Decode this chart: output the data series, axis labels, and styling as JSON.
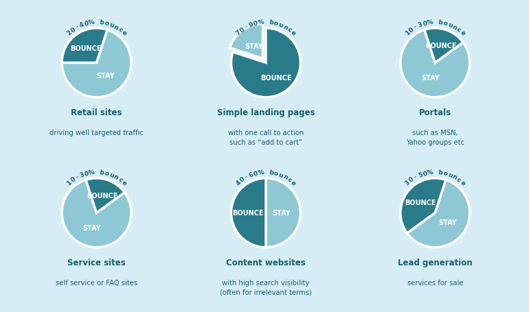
{
  "background_color": "#d6edf5",
  "stay_color": "#8ec8d4",
  "bounce_color": "#2a7b8a",
  "text_color_dark": "#1a5f6a",
  "text_color_white": "#ffffff",
  "charts": [
    {
      "title": "Retail sites",
      "subtitle": "driving well targeted traffic",
      "bounce_label": "20-40% bounce",
      "bounce_pct": 30,
      "stay_pct": 70,
      "explode_stay": 0,
      "explode_bounce": 0,
      "start_angle": 72
    },
    {
      "title": "Simple landing pages",
      "subtitle": "with one call to action\nsuch as “add to cart”",
      "bounce_label": "70-90% bounce",
      "bounce_pct": 80,
      "stay_pct": 20,
      "explode_stay": 0.15,
      "explode_bounce": 0,
      "start_angle": 162
    },
    {
      "title": "Portals",
      "subtitle": "such as MSN,\nYahoo groups etc",
      "bounce_label": "10-30% bounce",
      "bounce_pct": 20,
      "stay_pct": 80,
      "explode_stay": 0,
      "explode_bounce": 0,
      "start_angle": 36
    },
    {
      "title": "Service sites",
      "subtitle": "self service or FAQ sites",
      "bounce_label": "10-30% bounce",
      "bounce_pct": 20,
      "stay_pct": 80,
      "explode_stay": 0,
      "explode_bounce": 0,
      "start_angle": 36
    },
    {
      "title": "Content websites",
      "subtitle": "with high search visibility\n(often for irrelevant terms)",
      "bounce_label": "40-60% bounce",
      "bounce_pct": 50,
      "stay_pct": 50,
      "explode_stay": 0,
      "explode_bounce": 0,
      "start_angle": 90
    },
    {
      "title": "Lead generation",
      "subtitle": "services for sale",
      "bounce_label": "30-50% bounce",
      "bounce_pct": 40,
      "stay_pct": 60,
      "explode_stay": 0,
      "explode_bounce": 0,
      "start_angle": 72
    }
  ],
  "title_fontsize": 8.5,
  "subtitle_fontsize": 7.2,
  "label_fontsize": 7,
  "bounce_label_fontsize": 6.5
}
